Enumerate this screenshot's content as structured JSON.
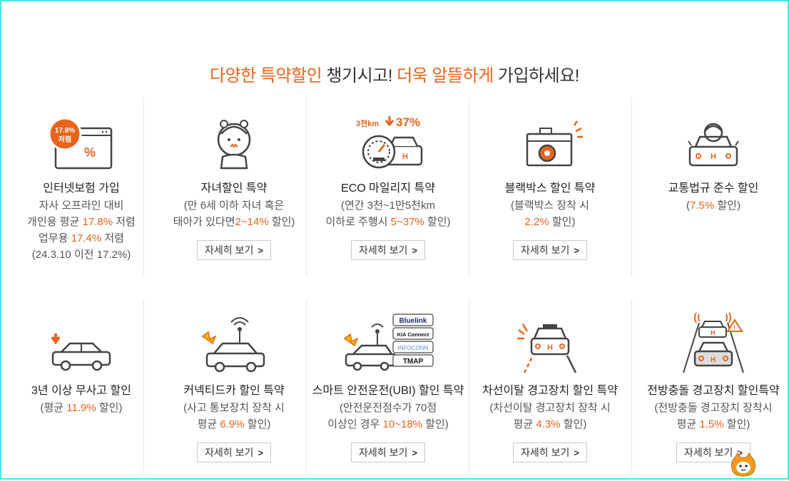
{
  "headline": {
    "part1": "다양한 특약할인",
    "part2": " 챙기시고! ",
    "part3": "더욱 알뜰하게",
    "part4": " 가입하세요!"
  },
  "cards": [
    {
      "title": "인터넷보험 가입",
      "lines": [
        [
          "자사 오프라인 대비",
          "",
          ""
        ],
        [
          "개인용 평균 ",
          "17.8%",
          " 저렴"
        ],
        [
          "업무용 ",
          "17.4%",
          " 저렴"
        ],
        [
          "(24.3.10 이전 17.2%)",
          "",
          ""
        ]
      ],
      "button": "",
      "badge": "17.8%",
      "badge2": "저렴"
    },
    {
      "title": "자녀할인 특약",
      "lines": [
        [
          "(만 6세 이하 자녀 혹은",
          "",
          ""
        ],
        [
          "태아가 있다면",
          "2~14%",
          " 할인)"
        ]
      ],
      "button": "자세히 보기"
    },
    {
      "title": "ECO 마일리지 특약",
      "lines": [
        [
          "(연간 3천~1만5천km",
          "",
          ""
        ],
        [
          "이하로 주행시 ",
          "5~37%",
          " 할인)"
        ]
      ],
      "button": "자세히 보기",
      "badge": "3천km",
      "badge2": "37%"
    },
    {
      "title": "블랙박스 할인 특약",
      "lines": [
        [
          "(블랙박스 장착 시",
          "",
          ""
        ],
        [
          "",
          "2.2%",
          " 할인)"
        ]
      ],
      "button": "자세히 보기"
    },
    {
      "title": "교통법규 준수 할인",
      "lines": [
        [
          "(",
          "7.5%",
          " 할인)"
        ]
      ],
      "button": ""
    },
    {
      "title": "3년 이상 무사고 할인",
      "lines": [
        [
          "(평균 ",
          "11.9%",
          " 할인)"
        ]
      ],
      "button": ""
    },
    {
      "title": "커넥티드카 할인 특약",
      "lines": [
        [
          "(사고 통보장치 장착 시",
          "",
          ""
        ],
        [
          "평균 ",
          "6.9%",
          " 할인)"
        ]
      ],
      "button": "자세히 보기"
    },
    {
      "title": "스마트 안전운전(UBI) 할인 특약",
      "lines": [
        [
          "(안전운전점수가 70점",
          "",
          ""
        ],
        [
          "이상인 경우 ",
          "10~18%",
          " 할인)"
        ]
      ],
      "button": "자세히 보기",
      "brands": [
        "Bluelink",
        "KIA Connect",
        "INFOCONN",
        "TMAP"
      ]
    },
    {
      "title": "차선이탈 경고장치 할인 특약",
      "lines": [
        [
          "(차선이탈 경고장치 장착 시",
          "",
          ""
        ],
        [
          "평균 ",
          "4.3%",
          " 할인)"
        ]
      ],
      "button": "자세히 보기"
    },
    {
      "title": "전방충돌 경고장치 할인특약",
      "lines": [
        [
          "(전방충돌 경고장치 장착시",
          "",
          ""
        ],
        [
          "평균 ",
          "1.5%",
          " 할인)"
        ]
      ],
      "button": "자세히 보기"
    }
  ],
  "colors": {
    "accent": "#e8641b",
    "frame": "#46e6e6"
  },
  "icons": [
    "monitor-percent-icon",
    "child-icon",
    "eco-car-gauge-icon",
    "blackbox-icon",
    "driver-car-icon",
    "car-down-arrow-icon",
    "connected-car-icon",
    "ubi-car-icon",
    "lane-departure-icon",
    "forward-collision-icon"
  ]
}
